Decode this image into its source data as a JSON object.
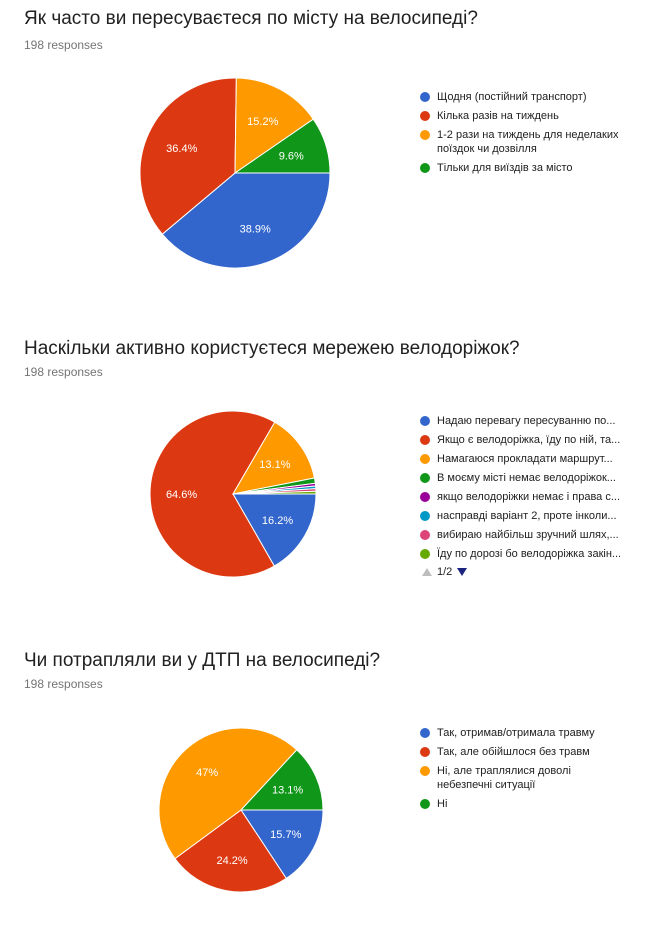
{
  "questions": [
    {
      "title": "Як часто ви пересуваєтеся по місту на велосипеді?",
      "responses": "198 responses",
      "legend": [
        "Щодня (постійний транспорт)",
        "Кілька разів на тиждень",
        "1-2 рази на тиждень для неделаких поїздок чи дозвілля",
        "Тільки для виїздів за місто"
      ]
    },
    {
      "title": "Наскільки активно користуєтеся мережею велодоріжок?",
      "responses": "198 responses",
      "legend": [
        "Надаю перевагу пересуванню по...",
        "Якщо є велодоріжка, їду по ній, та...",
        "Намагаюся прокладати маршрут...",
        "В моєму місті немає велодоріжок...",
        "якщо велодоріжки немає і права с...",
        "насправді варіант 2, проте інколи...",
        "вибираю найбільш зручний шлях,...",
        "Їду по дорозі бо велодоріжка закін..."
      ],
      "pager": "1/2"
    },
    {
      "title": "Чи потрапляли ви у ДТП на велосипеді?",
      "responses": "198 responses",
      "legend": [
        "Так, отримав/отримала травму",
        "Так, але обійшлося без травм",
        "Ні, але траплялися доволі небезпечні ситуації",
        "Ні"
      ]
    }
  ],
  "colors": {
    "blue": "#3366cc",
    "red": "#dc3912",
    "orange": "#ff9900",
    "green": "#109618",
    "purple": "#990099",
    "teal": "#0099c6",
    "pink": "#dd4477",
    "lime": "#66aa00"
  },
  "chart_data": [
    {
      "type": "pie",
      "title": "Як часто ви пересуваєтеся по місту на велосипеді?",
      "labels": [
        "Щодня (постійний транспорт)",
        "Кілька разів на тиждень",
        "1-2 рази на тиждень для неделаких поїздок чи дозвілля",
        "Тільки для виїздів за місто"
      ],
      "values": [
        38.9,
        36.4,
        15.2,
        9.6
      ],
      "data_labels": [
        "38.9%",
        "36.4%",
        "15.2%",
        "9.6%"
      ],
      "colors": [
        "#3366cc",
        "#dc3912",
        "#ff9900",
        "#109618"
      ],
      "legend": "right"
    },
    {
      "type": "pie",
      "title": "Наскільки активно користуєтеся мережею велодоріжок?",
      "labels": [
        "Надаю перевагу пересуванню по...",
        "Якщо є велодоріжка, їду по ній, та...",
        "Намагаюся прокладати маршрут...",
        "В моєму місті немає велодоріжок...",
        "якщо велодоріжки немає і права с...",
        "насправді варіант 2, проте інколи...",
        "вибираю найбільш зручний шлях,...",
        "Їду по дорозі бо велодоріжка закін..."
      ],
      "values": [
        16.2,
        64.6,
        13.1,
        1.0,
        0.5,
        0.5,
        0.5,
        0.5
      ],
      "data_labels": [
        "16.2%",
        "64.6%",
        "13.1%",
        "",
        "",
        "",
        "",
        ""
      ],
      "colors": [
        "#3366cc",
        "#dc3912",
        "#ff9900",
        "#109618",
        "#990099",
        "#0099c6",
        "#dd4477",
        "#66aa00"
      ],
      "legend": "right"
    },
    {
      "type": "pie",
      "title": "Чи потрапляли ви у ДТП на велосипеді?",
      "labels": [
        "Так, отримав/отримала травму",
        "Так, але обійшлося без травм",
        "Ні, але траплялися доволі небезпечні ситуації",
        "Ні"
      ],
      "values": [
        15.7,
        24.2,
        47,
        13.1
      ],
      "data_labels": [
        "15.7%",
        "24.2%",
        "47%",
        "13.1%"
      ],
      "colors": [
        "#3366cc",
        "#dc3912",
        "#ff9900",
        "#109618"
      ],
      "legend": "right"
    }
  ]
}
